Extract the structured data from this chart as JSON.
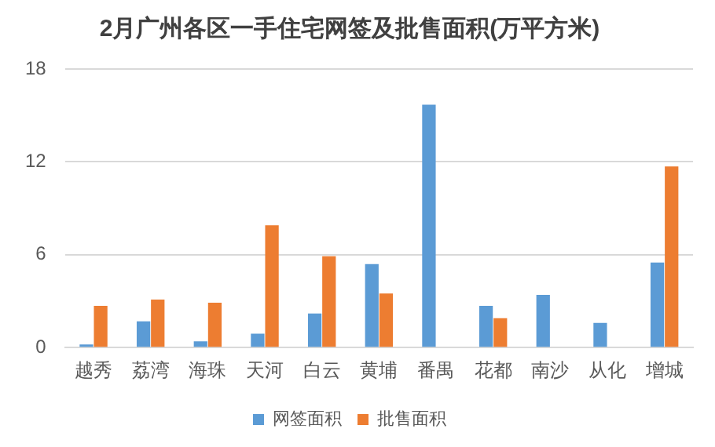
{
  "chart_data": {
    "type": "bar",
    "title": "2月广州各区一手住宅网签及批售面积(万平方米)",
    "categories": [
      "越秀",
      "荔湾",
      "海珠",
      "天河",
      "白云",
      "黄埔",
      "番禺",
      "花都",
      "南沙",
      "从化",
      "增城"
    ],
    "series": [
      {
        "name": "网签面积",
        "color": "#5b9bd5",
        "values": [
          0.2,
          1.7,
          0.4,
          0.9,
          2.2,
          5.4,
          15.7,
          2.7,
          3.4,
          1.6,
          5.5
        ]
      },
      {
        "name": "批售面积",
        "color": "#ed7d31",
        "values": [
          2.7,
          3.1,
          2.9,
          7.9,
          5.9,
          3.5,
          null,
          1.9,
          null,
          null,
          11.7
        ]
      }
    ],
    "ylim": [
      0,
      18
    ],
    "yticks": [
      0,
      6,
      12,
      18
    ],
    "grid": "y",
    "legend": "bottom"
  }
}
